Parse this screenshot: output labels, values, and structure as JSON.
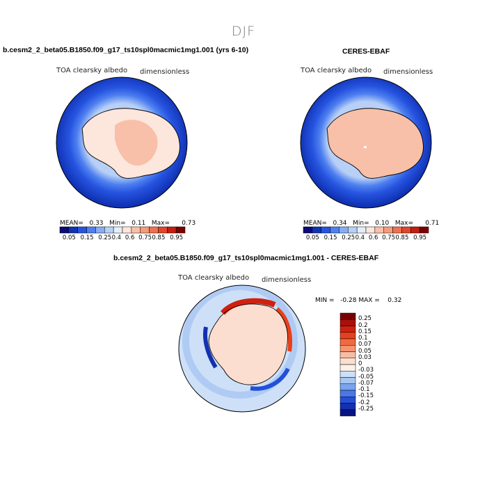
{
  "title": "DJF",
  "panels": {
    "model": {
      "case": "b.cesm2_2_beta05.B1850.f09_g17_ts10spl0macmic1mg1.001 (yrs 6-10)",
      "variable": "TOA clearsky albedo",
      "units": "dimensionless",
      "mean_label": "MEAN=",
      "mean": "0.33",
      "min_label": "Min=",
      "min": "0.11",
      "max_label": "Max=",
      "max": "0.73"
    },
    "obs": {
      "case": "CERES-EBAF",
      "variable": "TOA clearsky albedo",
      "units": "dimensionless",
      "mean_label": "MEAN=",
      "mean": "0.34",
      "min_label": "Min=",
      "min": "0.10",
      "max_label": "Max=",
      "max": "0.71"
    },
    "diff": {
      "case": "b.cesm2_2_beta05.B1850.f09_g17_ts10spl0macmic1mg1.001 - CERES-EBAF",
      "variable": "TOA clearsky albedo",
      "units": "dimensionless",
      "min_label": "MIN =",
      "min": "-0.28",
      "max_label": "MAX =",
      "max": "0.32"
    }
  },
  "chart_data": [
    {
      "type": "heatmap",
      "title": "TOA clearsky albedo",
      "units": "dimensionless",
      "colorbar_ticks": [
        "0.05",
        "0.15",
        "0.25",
        "0.4",
        "0.6",
        "0.75",
        "0.85",
        "0.95"
      ],
      "colors": [
        "#0a0a78",
        "#1032b4",
        "#2654e0",
        "#4e80f0",
        "#86acf4",
        "#b8d0f6",
        "#e4eefa",
        "#fde6dc",
        "#f8c0a8",
        "#f59a7a",
        "#ef7050",
        "#e04628",
        "#c41e12",
        "#7a0000"
      ]
    },
    {
      "type": "heatmap",
      "title": "TOA clearsky albedo",
      "units": "dimensionless",
      "colorbar_ticks": [
        "0.25",
        "0.2",
        "0.15",
        "0.1",
        "0.07",
        "0.05",
        "0.03",
        "0",
        "-0.03",
        "-0.05",
        "-0.07",
        "-0.1",
        "-0.15",
        "-0.2",
        "-0.25"
      ],
      "colors": [
        "#7a0000",
        "#a8100a",
        "#d02010",
        "#e8401c",
        "#f06a40",
        "#f49470",
        "#f8bca0",
        "#fbded0",
        "#fbf1ea",
        "#cde0f8",
        "#a8c6f2",
        "#7aa4ee",
        "#4a78e8",
        "#2450d8",
        "#1430b0",
        "#0a1480"
      ]
    }
  ],
  "colorbar_seq": {
    "ticks": [
      "0.05",
      "0.15",
      "0.25",
      "0.4",
      "0.6",
      "0.75",
      "0.85",
      "0.95"
    ]
  },
  "colorbar_diff": {
    "ticks": [
      "0.25",
      "0.2",
      "0.15",
      "0.1",
      "0.07",
      "0.05",
      "0.03",
      "0",
      "-0.03",
      "-0.05",
      "-0.07",
      "-0.1",
      "-0.15",
      "-0.2",
      "-0.25"
    ]
  }
}
